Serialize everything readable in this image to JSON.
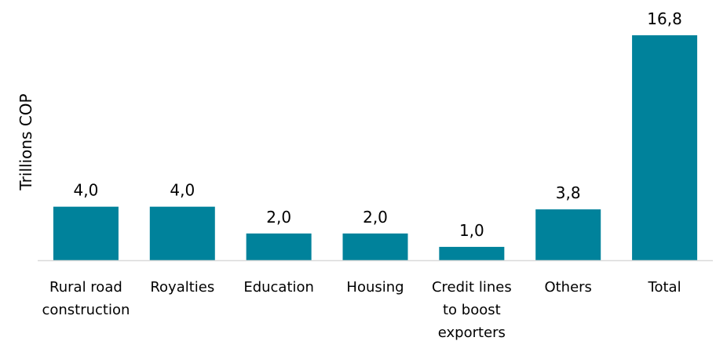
{
  "chart_data": {
    "type": "bar",
    "title": "",
    "xlabel": "",
    "ylabel": "Trillions COP",
    "categories": [
      [
        "Rural road",
        "construction"
      ],
      [
        "Royalties"
      ],
      [
        "Education"
      ],
      [
        "Housing"
      ],
      [
        "Credit lines",
        "to boost",
        "exporters"
      ],
      [
        "Others"
      ],
      [
        "Total"
      ]
    ],
    "values": [
      4.0,
      4.0,
      2.0,
      2.0,
      1.0,
      3.8,
      16.8
    ],
    "value_labels": [
      "4,0",
      "4,0",
      "2,0",
      "2,0",
      "1,0",
      "3,8",
      "16,8"
    ],
    "ylim": [
      0,
      17
    ],
    "grid": false,
    "legend": "none",
    "bar_color": "#00829B",
    "axis_color": "#D9D9D9"
  }
}
